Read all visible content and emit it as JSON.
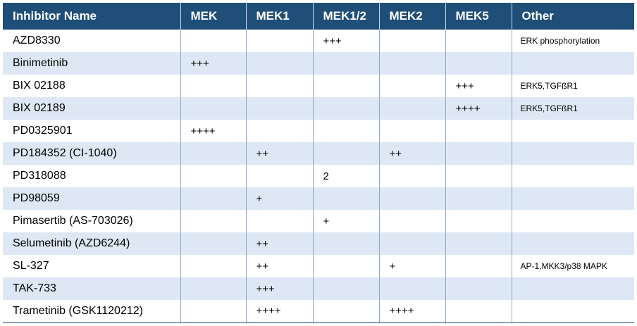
{
  "table": {
    "headers": [
      "Inhibitor Name",
      "MEK",
      "MEK1",
      "MEK1/2",
      "MEK2",
      "MEK5",
      "Other"
    ],
    "rows": [
      [
        "AZD8330",
        "",
        "",
        "+++",
        "",
        "",
        "ERK phosphorylation"
      ],
      [
        "Binimetinib",
        "+++",
        "",
        "",
        "",
        "",
        ""
      ],
      [
        "BIX 02188",
        "",
        "",
        "",
        "",
        "+++",
        "ERK5,TGFßR1"
      ],
      [
        "BIX 02189",
        "",
        "",
        "",
        "",
        "++++",
        "ERK5,TGFßR1"
      ],
      [
        "PD0325901",
        "++++",
        "",
        "",
        "",
        "",
        ""
      ],
      [
        "PD184352 (CI-1040)",
        "",
        "++",
        "",
        "++",
        "",
        ""
      ],
      [
        "PD318088",
        "",
        "",
        "2",
        "",
        "",
        ""
      ],
      [
        "PD98059",
        "",
        "+",
        "",
        "",
        "",
        ""
      ],
      [
        "Pimasertib (AS-703026)",
        "",
        "",
        "+",
        "",
        "",
        ""
      ],
      [
        "Selumetinib (AZD6244)",
        "",
        "++",
        "",
        "",
        "",
        ""
      ],
      [
        "SL-327",
        "",
        "++",
        "",
        "+",
        "",
        "AP-1,MKK3/p38 MAPK"
      ],
      [
        "TAK-733",
        "",
        "+++",
        "",
        "",
        "",
        ""
      ],
      [
        "Trametinib (GSK1120212)",
        "",
        "++++",
        "",
        "++++",
        "",
        ""
      ]
    ]
  },
  "colors": {
    "header_bg": "#1f4e79",
    "header_text": "#ffffff",
    "stripe_bg": "#dde8f4",
    "divider": "#8fa8c8"
  }
}
